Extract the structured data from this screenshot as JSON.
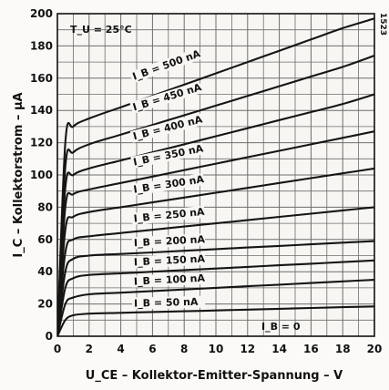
{
  "chart_data": {
    "type": "line",
    "xlabel": "U_CE – Kollektor-Emitter-Spannung – V",
    "ylabel": "I_C – Kollektorstrom – µA",
    "xlim": [
      0,
      20
    ],
    "ylim": [
      0,
      200
    ],
    "x_ticks": [
      "0",
      "2",
      "4",
      "6",
      "8",
      "10",
      "12",
      "14",
      "16",
      "18",
      "20"
    ],
    "y_ticks": [
      "0",
      "20",
      "40",
      "60",
      "80",
      "100",
      "120",
      "140",
      "160",
      "180",
      "200"
    ],
    "grid": true,
    "annotations": {
      "temperature": "T_U = 25°C",
      "ib_zero": "I_B = 0",
      "figure_code": "1523"
    },
    "series": [
      {
        "name": "I_B = 50 nA",
        "x": [
          0,
          0.5,
          1,
          2,
          4,
          6,
          8,
          10,
          12,
          14,
          16,
          18,
          20
        ],
        "y": [
          0,
          10,
          13,
          14,
          14.5,
          15,
          15.5,
          16,
          16.5,
          17,
          17.5,
          18,
          18.5
        ]
      },
      {
        "name": "I_B = 100 nA",
        "x": [
          0,
          0.5,
          1,
          2,
          4,
          6,
          8,
          10,
          12,
          14,
          16,
          18,
          20
        ],
        "y": [
          0,
          20,
          24,
          26,
          27,
          28,
          29,
          30,
          31,
          32,
          33,
          34,
          35
        ]
      },
      {
        "name": "I_B = 150 nA",
        "x": [
          0,
          0.5,
          1,
          2,
          4,
          6,
          8,
          10,
          12,
          14,
          16,
          18,
          20
        ],
        "y": [
          0,
          30,
          36,
          38,
          39,
          40,
          41,
          42,
          43,
          44,
          45,
          46,
          47
        ]
      },
      {
        "name": "I_B = 200 nA",
        "x": [
          0,
          0.5,
          1,
          2,
          4,
          6,
          8,
          10,
          12,
          14,
          16,
          18,
          20
        ],
        "y": [
          0,
          40,
          48,
          50,
          51,
          52,
          53,
          54,
          55,
          56,
          57,
          58,
          59
        ]
      },
      {
        "name": "I_B = 250 nA",
        "x": [
          0,
          0.5,
          1,
          2,
          4,
          6,
          8,
          10,
          12,
          14,
          16,
          18,
          20
        ],
        "y": [
          0,
          52,
          60,
          62,
          64,
          66,
          68,
          70,
          72,
          74,
          76,
          78,
          80
        ]
      },
      {
        "name": "I_B = 300 nA",
        "x": [
          0,
          0.5,
          1,
          2,
          4,
          6,
          8,
          10,
          12,
          14,
          16,
          18,
          20
        ],
        "y": [
          0,
          66,
          74,
          77,
          80,
          83,
          86,
          89,
          92,
          95,
          98,
          101,
          104
        ]
      },
      {
        "name": "I_B = 350 nA",
        "x": [
          0,
          0.5,
          1,
          2,
          4,
          6,
          8,
          10,
          12,
          14,
          16,
          18,
          20
        ],
        "y": [
          0,
          80,
          88,
          91,
          95,
          99,
          103,
          107,
          111,
          115,
          119,
          123,
          127
        ]
      },
      {
        "name": "I_B = 400 nA",
        "x": [
          0,
          0.5,
          1,
          2,
          4,
          6,
          8,
          10,
          12,
          14,
          16,
          18,
          20
        ],
        "y": [
          0,
          92,
          100,
          104,
          109,
          114,
          119,
          124,
          129,
          134,
          139,
          144,
          150
        ]
      },
      {
        "name": "I_B = 450 nA",
        "x": [
          0,
          0.5,
          1,
          2,
          4,
          6,
          8,
          10,
          12,
          14,
          16,
          18,
          20
        ],
        "y": [
          0,
          105,
          114,
          119,
          125,
          131,
          137,
          143,
          149,
          155,
          161,
          167,
          174
        ]
      },
      {
        "name": "I_B = 500 nA",
        "x": [
          0,
          0.5,
          1,
          2,
          4,
          6,
          8,
          10,
          12,
          14,
          16,
          18,
          20
        ],
        "y": [
          0,
          120,
          130,
          135,
          142,
          149,
          156,
          163,
          170,
          177,
          184,
          191,
          197
        ]
      }
    ]
  }
}
